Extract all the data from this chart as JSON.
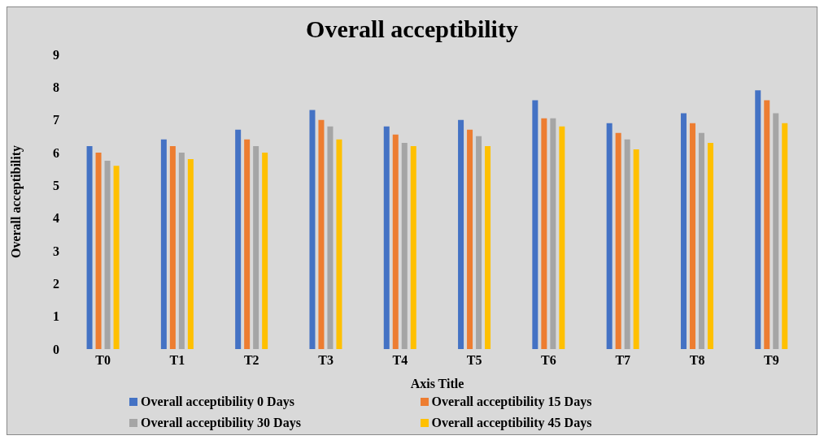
{
  "chart_data": {
    "type": "bar",
    "title": "Overall acceptibility",
    "xlabel": "Axis Title",
    "ylabel": "Overall acceptibility",
    "categories": [
      "T0",
      "T1",
      "T2",
      "T3",
      "T4",
      "T5",
      "T6",
      "T7",
      "T8",
      "T9"
    ],
    "series": [
      {
        "name": "Overall acceptibility 0 Days",
        "color": "#4472c4",
        "values": [
          6.2,
          6.4,
          6.7,
          7.3,
          6.8,
          7.0,
          7.6,
          6.9,
          7.2,
          7.9
        ]
      },
      {
        "name": "Overall acceptibility 15 Days",
        "color": "#ed7d31",
        "values": [
          6.0,
          6.2,
          6.4,
          7.0,
          6.55,
          6.7,
          7.05,
          6.6,
          6.9,
          7.6
        ]
      },
      {
        "name": "Overall acceptibility 30 Days",
        "color": "#a5a5a5",
        "values": [
          5.75,
          6.0,
          6.2,
          6.8,
          6.3,
          6.5,
          7.05,
          6.4,
          6.6,
          7.2
        ]
      },
      {
        "name": "Overall acceptibility 45 Days",
        "color": "#ffc000",
        "values": [
          5.6,
          5.8,
          6.0,
          6.4,
          6.2,
          6.2,
          6.8,
          6.1,
          6.3,
          6.9
        ]
      }
    ],
    "ylim": [
      0,
      9
    ],
    "yticks": [
      0,
      1,
      2,
      3,
      4,
      5,
      6,
      7,
      8,
      9
    ],
    "grid": false,
    "legend": "bottom"
  }
}
